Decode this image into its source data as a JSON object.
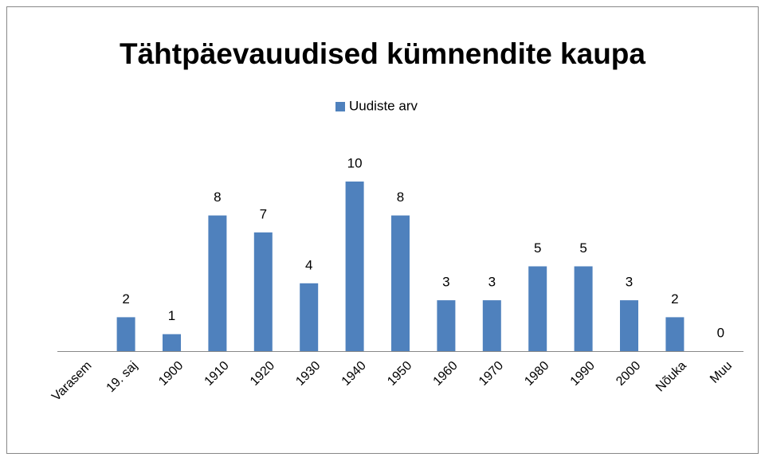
{
  "chart_data": {
    "type": "bar",
    "title": "Tähtpäevauudised kümnendite kaupa",
    "categories": [
      "Varasem",
      "19. saj",
      "1900",
      "1910",
      "1920",
      "1930",
      "1940",
      "1950",
      "1960",
      "1970",
      "1980",
      "1990",
      "2000",
      "Nõuka",
      "Muu"
    ],
    "series": [
      {
        "name": "Uudiste arv",
        "color": "#4f81bd",
        "values": [
          null,
          2,
          1,
          8,
          7,
          4,
          10,
          8,
          3,
          3,
          5,
          5,
          3,
          2,
          0
        ]
      }
    ],
    "legend": "top"
  }
}
